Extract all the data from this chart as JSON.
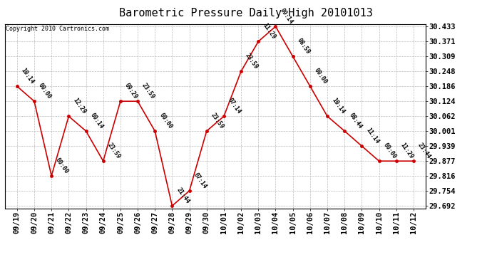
{
  "title": "Barometric Pressure Daily High 20101013",
  "copyright": "Copyright 2010 Cartronics.com",
  "x_labels": [
    "09/19",
    "09/20",
    "09/21",
    "09/22",
    "09/23",
    "09/24",
    "09/25",
    "09/26",
    "09/27",
    "09/28",
    "09/29",
    "09/30",
    "10/01",
    "10/02",
    "10/03",
    "10/04",
    "10/05",
    "10/06",
    "10/07",
    "10/08",
    "10/09",
    "10/10",
    "10/11",
    "10/12"
  ],
  "y_values": [
    30.186,
    30.124,
    29.816,
    30.062,
    30.001,
    29.877,
    30.124,
    30.124,
    30.001,
    29.692,
    29.754,
    30.001,
    30.062,
    30.248,
    30.371,
    30.433,
    30.309,
    30.186,
    30.062,
    30.001,
    29.939,
    29.877,
    29.877,
    29.877
  ],
  "point_labels": [
    "10:14",
    "00:00",
    "00:00",
    "12:29",
    "00:14",
    "23:59",
    "09:29",
    "23:59",
    "00:00",
    "21:44",
    "07:14",
    "23:59",
    "07:14",
    "23:59",
    "11:29",
    "09:14",
    "08:59",
    "00:00",
    "10:14",
    "08:44",
    "11:14",
    "00:00",
    "11:29",
    "23:44"
  ],
  "y_ticks": [
    29.692,
    29.754,
    29.816,
    29.877,
    29.939,
    30.001,
    30.062,
    30.124,
    30.186,
    30.248,
    30.309,
    30.371,
    30.433
  ],
  "y_min": 29.692,
  "y_max": 30.433,
  "line_color": "#cc0000",
  "marker_color": "#cc0000",
  "bg_color": "#ffffff",
  "grid_color": "#bbbbbb",
  "title_fontsize": 11,
  "tick_fontsize": 7.5,
  "label_fontsize": 6,
  "copyright_fontsize": 6
}
